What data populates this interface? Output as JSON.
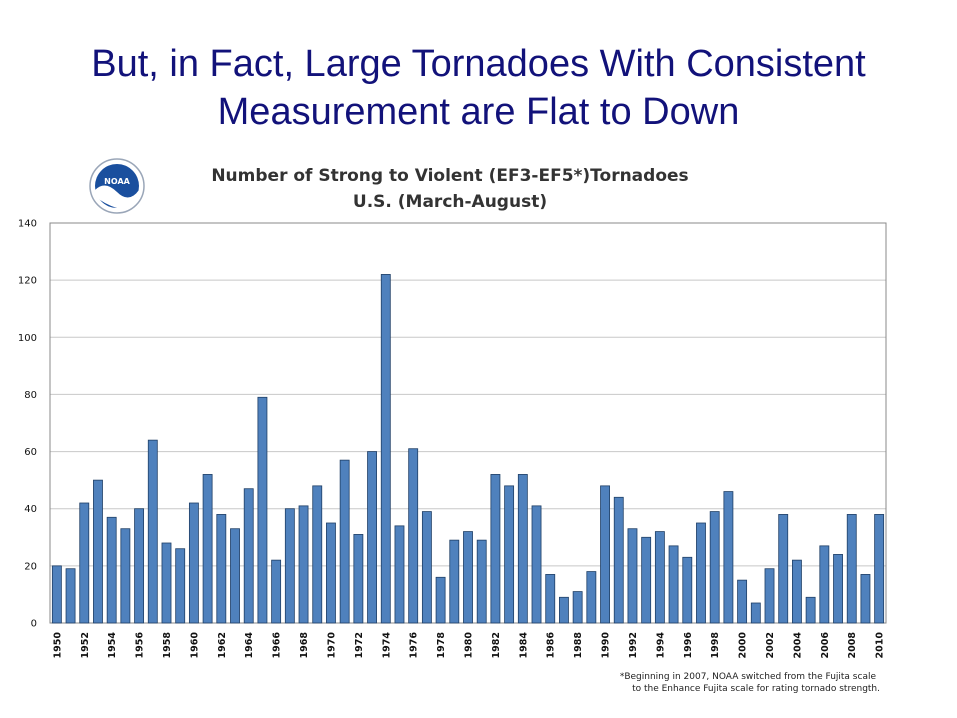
{
  "slide": {
    "title_line1": "But, in Fact, Large Tornadoes With Consistent",
    "title_line2": "Measurement are Flat to Down"
  },
  "logo": {
    "text": "NOAA"
  },
  "colors": {
    "title": "#12127a",
    "bar_fill": "#4f81bd",
    "bar_stroke": "#1f3f66",
    "grid": "#c8c8c8"
  },
  "chart_data": {
    "type": "bar",
    "title": "Number of Strong to Violent (EF3-EF5*)Tornadoes",
    "subtitle": "U.S. (March-August)",
    "xlabel": "",
    "ylabel": "",
    "ylim": [
      0,
      140
    ],
    "yticks": [
      0,
      20,
      40,
      60,
      80,
      100,
      120,
      140
    ],
    "grid": true,
    "categories": [
      1950,
      1951,
      1952,
      1953,
      1954,
      1955,
      1956,
      1957,
      1958,
      1959,
      1960,
      1961,
      1962,
      1963,
      1964,
      1965,
      1966,
      1967,
      1968,
      1969,
      1970,
      1971,
      1972,
      1973,
      1974,
      1975,
      1976,
      1977,
      1978,
      1979,
      1980,
      1981,
      1982,
      1983,
      1984,
      1985,
      1986,
      1987,
      1988,
      1989,
      1990,
      1991,
      1992,
      1993,
      1994,
      1995,
      1996,
      1997,
      1998,
      1999,
      2000,
      2001,
      2002,
      2003,
      2004,
      2005,
      2006,
      2007,
      2008,
      2009,
      2010
    ],
    "values": [
      20,
      19,
      42,
      50,
      37,
      33,
      40,
      64,
      28,
      26,
      42,
      52,
      38,
      33,
      47,
      79,
      22,
      40,
      41,
      48,
      35,
      57,
      31,
      60,
      122,
      34,
      61,
      39,
      16,
      29,
      32,
      29,
      52,
      48,
      52,
      41,
      17,
      9,
      11,
      18,
      48,
      44,
      33,
      30,
      32,
      27,
      23,
      35,
      39,
      46,
      15,
      7,
      19,
      38,
      22,
      9,
      27,
      24,
      38,
      17,
      38
    ],
    "tick_labels": [
      "1950",
      "1952",
      "1954",
      "1956",
      "1958",
      "1960",
      "1962",
      "1964",
      "1966",
      "1968",
      "1970",
      "1972",
      "1974",
      "1976",
      "1978",
      "1980",
      "1982",
      "1984",
      "1986",
      "1988",
      "1990",
      "1992",
      "1994",
      "1996",
      "1998",
      "2000",
      "2002",
      "2004",
      "2006",
      "2008",
      "2010"
    ],
    "footnote_line1": "*Beginning in 2007, NOAA switched from the Fujita scale",
    "footnote_line2": "to the Enhance Fujita scale for rating tornado strength."
  }
}
